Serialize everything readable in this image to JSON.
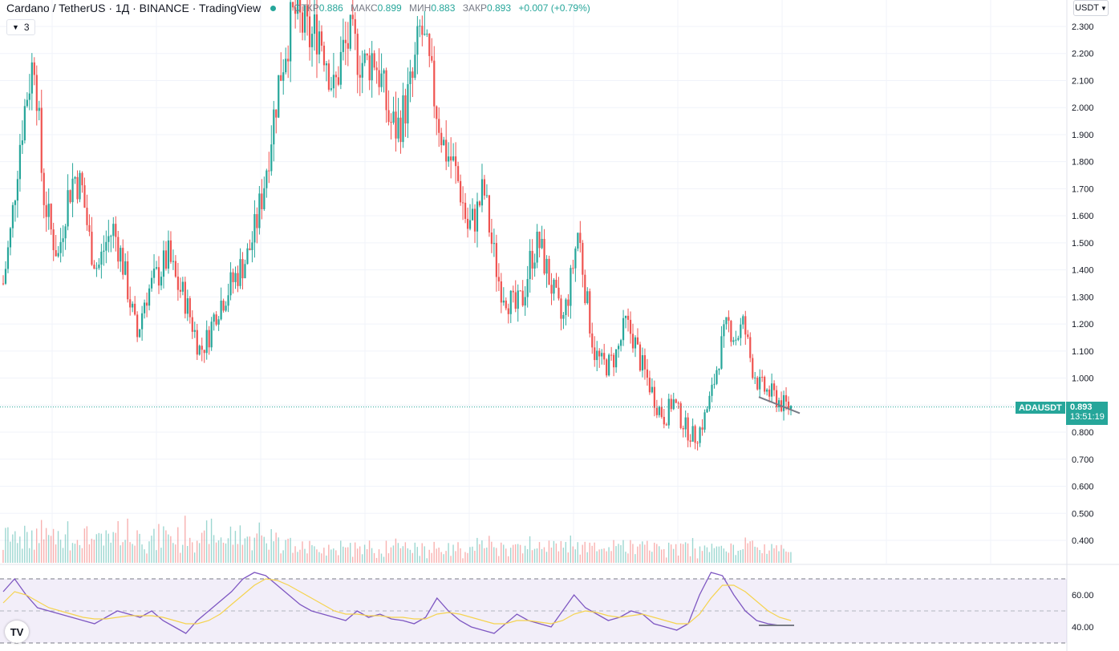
{
  "header": {
    "symbol_title": "Cardano / TetherUS · 1Д · BINANCE · TradingView",
    "open_label": "ОТКР",
    "open_value": "0.886",
    "high_label": "МАКС",
    "high_value": "0.899",
    "low_label": "МИН",
    "low_value": "0.883",
    "close_label": "ЗАКР",
    "close_value": "0.893",
    "change": "+0.007 (+0.79%)",
    "indicator_count": "3"
  },
  "currency_button": "USDT",
  "last_price": {
    "symbol": "ADAUSDT",
    "price": "0.893",
    "countdown": "13:51:19"
  },
  "logo_text": "TV",
  "colors": {
    "up": "#26a69a",
    "down": "#ef5350",
    "rsi": "#7e57c2",
    "rsi_ma": "#f5d34f"
  },
  "chart_data": [
    {
      "type": "candlestick",
      "title": "ADAUSDT",
      "ylim": [
        0.3,
        2.33
      ],
      "y_ticks": [
        "2.300",
        "2.200",
        "2.100",
        "2.000",
        "1.900",
        "1.800",
        "1.700",
        "1.600",
        "1.500",
        "1.400",
        "1.300",
        "1.200",
        "1.100",
        "1.000",
        "0.900",
        "0.800",
        "0.700",
        "0.600",
        "0.500",
        "0.400"
      ],
      "grid": true,
      "close_approx": [
        1.35,
        1.55,
        1.85,
        2.05,
        2.2,
        1.7,
        1.55,
        1.45,
        1.65,
        1.75,
        1.7,
        1.5,
        1.4,
        1.5,
        1.55,
        1.45,
        1.3,
        1.15,
        1.3,
        1.35,
        1.4,
        1.45,
        1.35,
        1.3,
        1.2,
        1.1,
        1.15,
        1.25,
        1.3,
        1.35,
        1.4,
        1.45,
        1.55,
        1.7,
        1.9,
        2.1,
        2.25,
        2.35,
        2.3,
        2.25,
        2.3,
        2.2,
        2.05,
        2.2,
        2.25,
        2.2,
        2.15,
        2.2,
        2.1,
        1.95,
        1.92,
        2.0,
        2.1,
        2.3,
        2.15,
        2.0,
        1.85,
        1.8,
        1.7,
        1.55,
        1.6,
        1.7,
        1.5,
        1.35,
        1.3,
        1.25,
        1.3,
        1.45,
        1.5,
        1.4,
        1.3,
        1.2,
        1.35,
        1.55,
        1.3,
        1.1,
        1.05,
        1.05,
        1.1,
        1.2,
        1.15,
        1.05,
        0.98,
        0.9,
        0.85,
        0.92,
        0.85,
        0.8,
        0.78,
        0.85,
        0.95,
        1.1,
        1.2,
        1.15,
        1.2,
        1.05,
        0.97,
        0.95,
        0.93,
        0.9,
        0.893
      ],
      "annotation": "descending trendline near 0.93 → 0.89"
    },
    {
      "type": "bar",
      "title": "Volume",
      "note": "volume histogram, values not printed"
    },
    {
      "type": "line",
      "title": "RSI",
      "y_ticks": [
        "60.00",
        "40.00"
      ],
      "bands": [
        70,
        30
      ],
      "series": [
        {
          "values": [
            62,
            70,
            60,
            52,
            50,
            48,
            46,
            44,
            42,
            46,
            50,
            48,
            46,
            50,
            44,
            40,
            36,
            44,
            50,
            56,
            62,
            70,
            74,
            72,
            66,
            60,
            54,
            50,
            48,
            46,
            44,
            50,
            46,
            48,
            45,
            44,
            42,
            46,
            58,
            50,
            44,
            40,
            38,
            36,
            42,
            48,
            44,
            42,
            40,
            50,
            60,
            52,
            48,
            44,
            46,
            50,
            48,
            42,
            40,
            38,
            42,
            60,
            74,
            72,
            60,
            50,
            44,
            42,
            41,
            41
          ]
        },
        {
          "values": [
            55,
            62,
            60,
            56,
            52,
            50,
            48,
            46,
            45,
            45,
            46,
            47,
            47,
            47,
            46,
            44,
            42,
            42,
            44,
            48,
            54,
            60,
            66,
            70,
            69,
            66,
            62,
            58,
            54,
            50,
            48,
            48,
            47,
            47,
            46,
            46,
            45,
            45,
            48,
            49,
            48,
            46,
            44,
            42,
            42,
            44,
            44,
            43,
            42,
            44,
            48,
            50,
            49,
            47,
            46,
            47,
            48,
            46,
            44,
            42,
            42,
            48,
            58,
            66,
            66,
            62,
            56,
            50,
            46,
            44
          ]
        }
      ]
    }
  ]
}
